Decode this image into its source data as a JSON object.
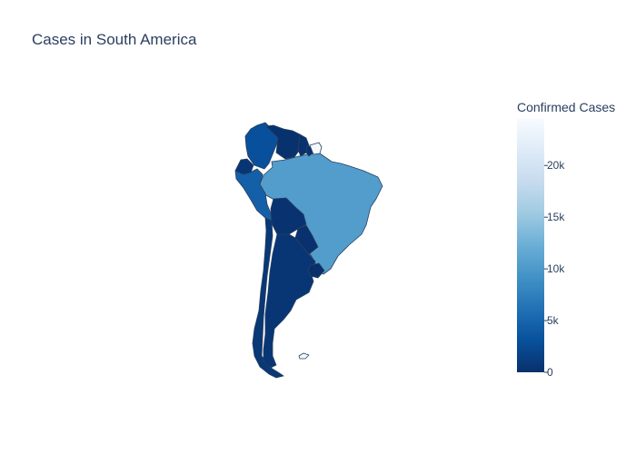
{
  "chart_data": {
    "type": "choropleth",
    "title": "Cases in South America",
    "colorbar": {
      "title": "Confirmed Cases",
      "range": [
        0,
        24500
      ],
      "ticks": [
        {
          "value": 0,
          "label": "0"
        },
        {
          "value": 5000,
          "label": "5k"
        },
        {
          "value": 10000,
          "label": "10k"
        },
        {
          "value": 15000,
          "label": "15k"
        },
        {
          "value": 20000,
          "label": "20k"
        }
      ],
      "colorscale": [
        "#08306b",
        "#08519c",
        "#2171b5",
        "#4292c6",
        "#6baed6",
        "#9ecae1",
        "#c6dbef",
        "#deebf7",
        "#f7fbff"
      ]
    },
    "countries": [
      {
        "name": "Brazil",
        "value": 10400
      },
      {
        "name": "Colombia",
        "value": 3000
      },
      {
        "name": "Peru",
        "value": 4500
      },
      {
        "name": "Ecuador",
        "value": 600
      },
      {
        "name": "Venezuela",
        "value": 200
      },
      {
        "name": "Guyana",
        "value": 100
      },
      {
        "name": "Suriname",
        "value": 100
      },
      {
        "name": "French Guiana",
        "value": 24000
      },
      {
        "name": "Bolivia",
        "value": 300
      },
      {
        "name": "Paraguay",
        "value": 100
      },
      {
        "name": "Chile",
        "value": 700
      },
      {
        "name": "Argentina",
        "value": 600
      },
      {
        "name": "Uruguay",
        "value": 50
      },
      {
        "name": "Falkland Islands",
        "value": 24000
      }
    ]
  }
}
